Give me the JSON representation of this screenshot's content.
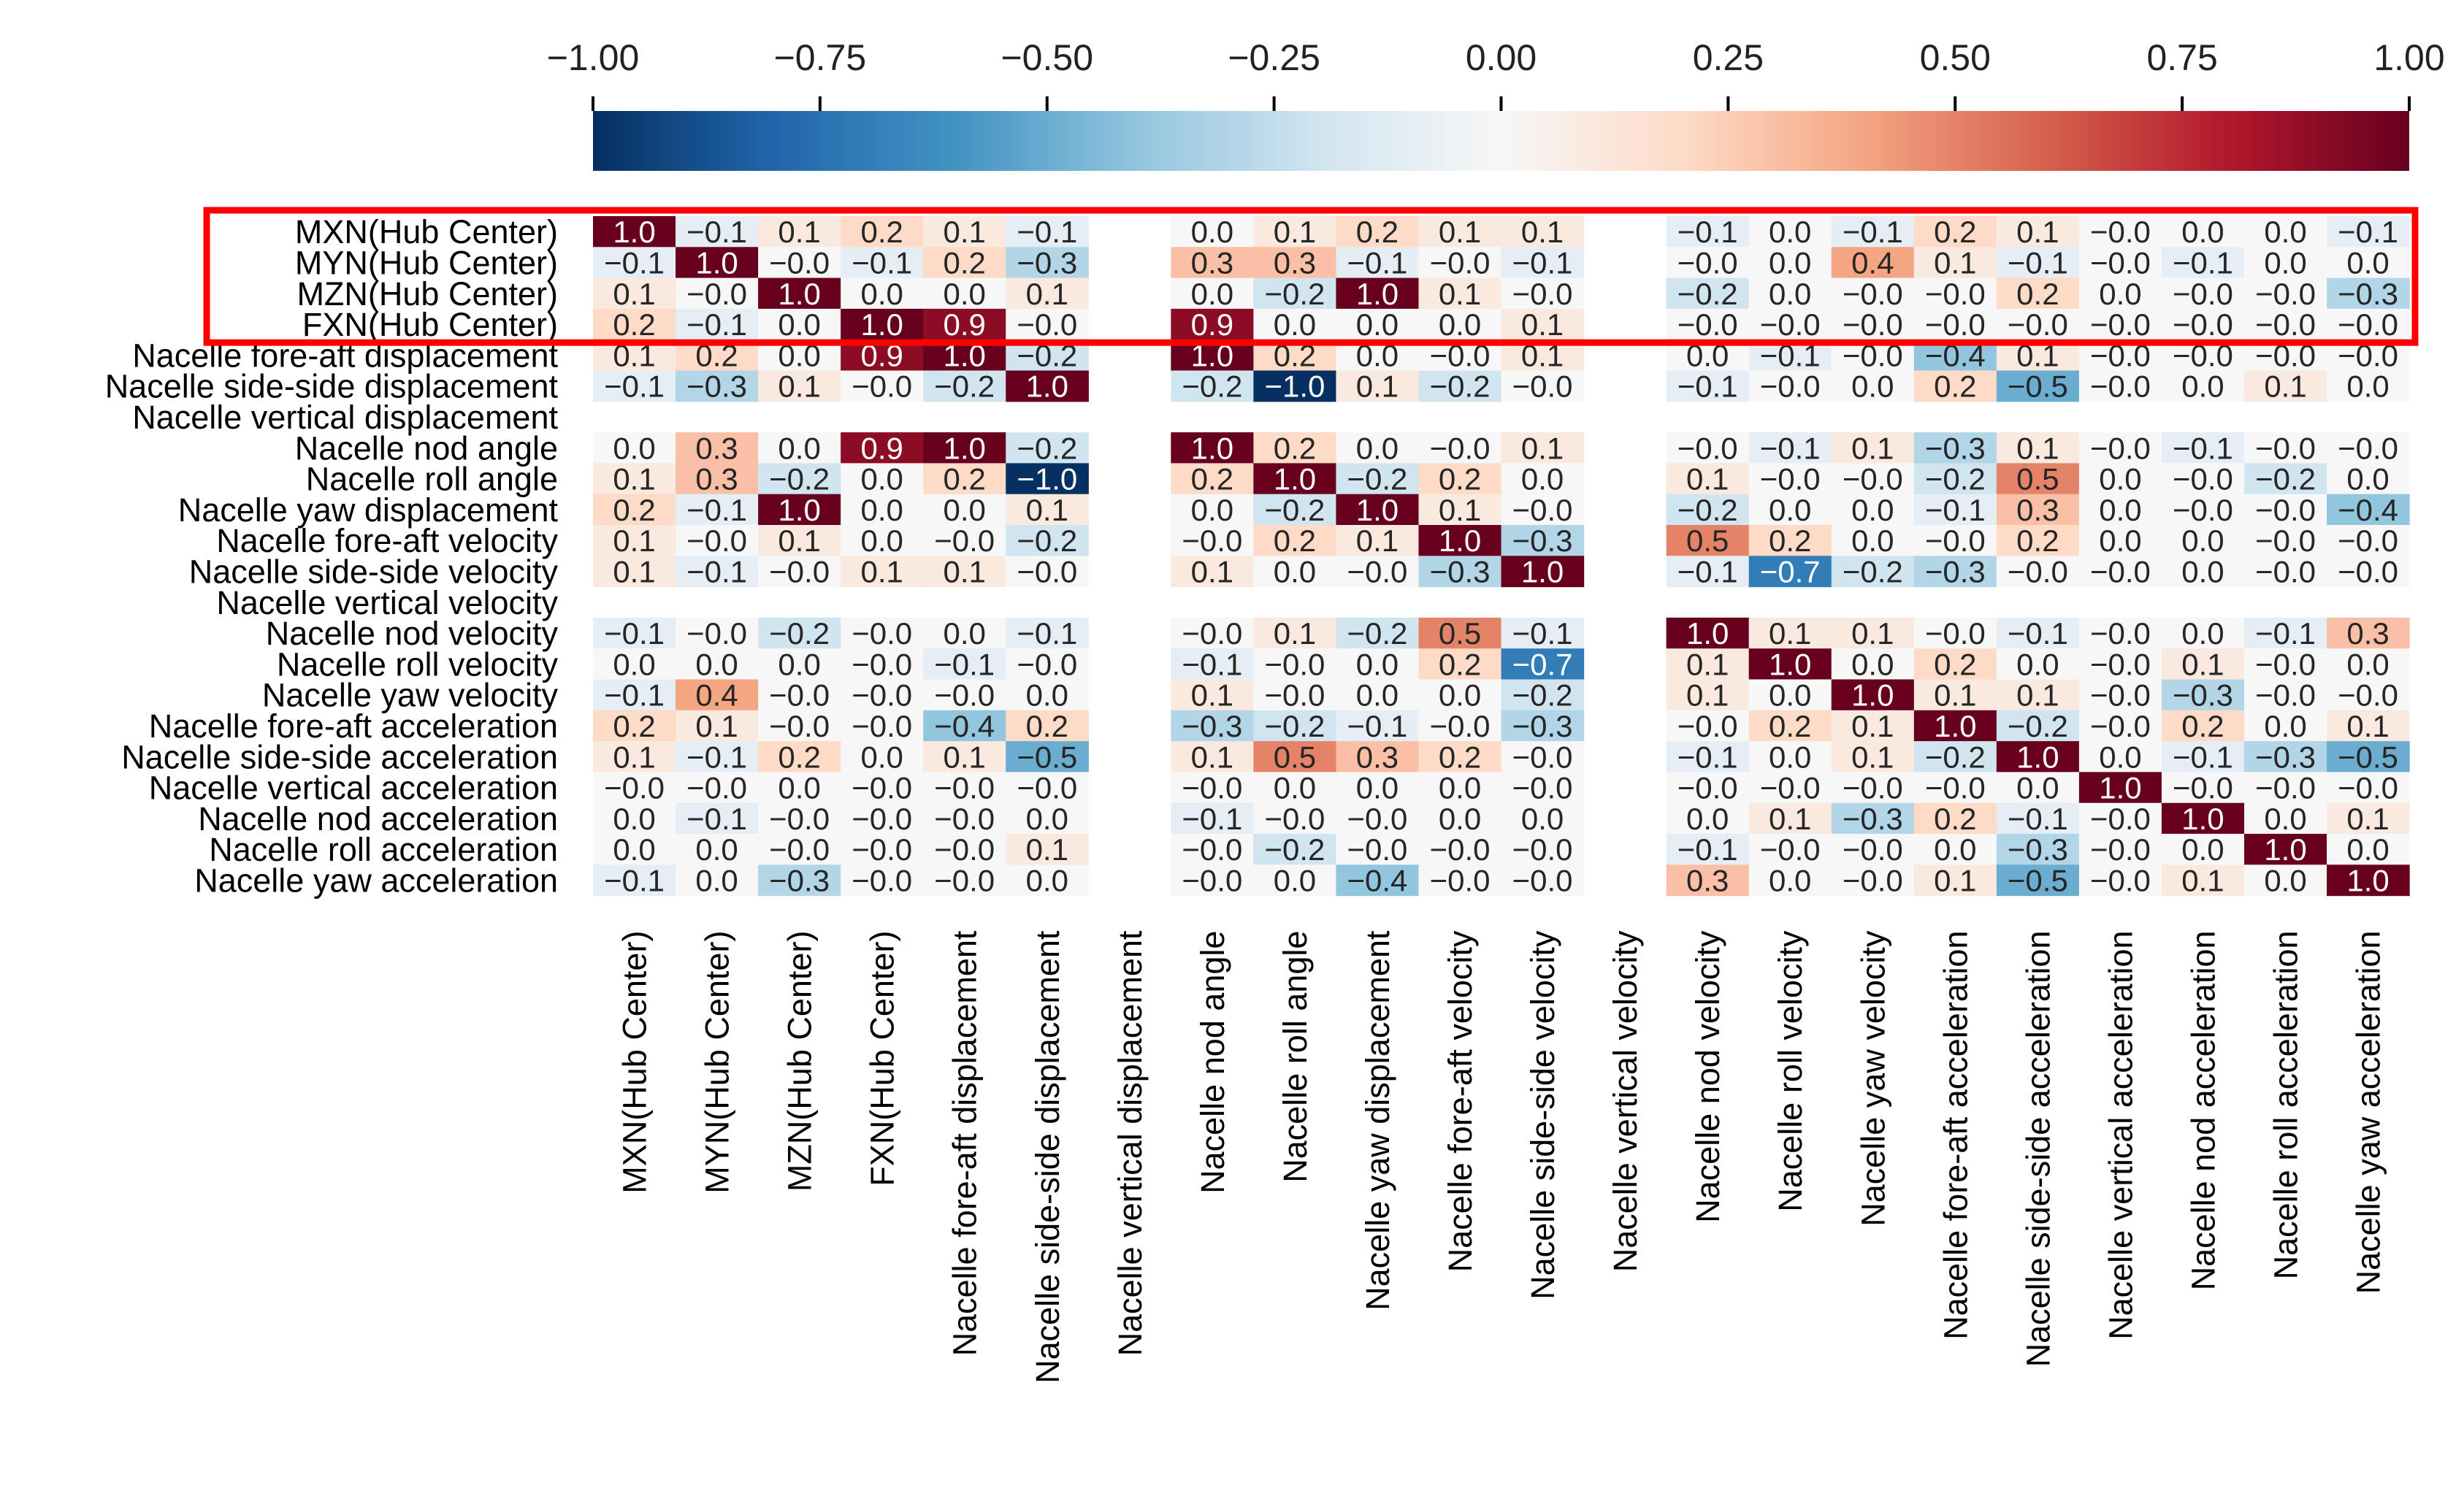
{
  "chart_data": {
    "type": "heatmap",
    "title": "",
    "labels": [
      "MXN(Hub Center)",
      "MYN(Hub Center)",
      "MZN(Hub Center)",
      "FXN(Hub Center)",
      "Nacelle fore-aft displacement",
      "Nacelle side-side displacement",
      "Nacelle vertical displacement",
      "Nacelle nod angle",
      "Nacelle roll angle",
      "Nacelle yaw displacement",
      "Nacelle fore-aft velocity",
      "Nacelle side-side velocity",
      "Nacelle vertical velocity",
      "Nacelle nod velocity",
      "Nacelle roll velocity",
      "Nacelle yaw velocity",
      "Nacelle fore-aft acceleration",
      "Nacelle side-side acceleration",
      "Nacelle vertical acceleration",
      "Nacelle nod acceleration",
      "Nacelle roll acceleration",
      "Nacelle yaw acceleration"
    ],
    "cells": [
      [
        "1.0",
        "−0.1",
        "0.1",
        "0.2",
        "0.1",
        "−0.1",
        null,
        "0.0",
        "0.1",
        "0.2",
        "0.1",
        "0.1",
        null,
        "−0.1",
        "0.0",
        "−0.1",
        "0.2",
        "0.1",
        "−0.0",
        "0.0",
        "0.0",
        "−0.1"
      ],
      [
        "−0.1",
        "1.0",
        "−0.0",
        "−0.1",
        "0.2",
        "−0.3",
        null,
        "0.3",
        "0.3",
        "−0.1",
        "−0.0",
        "−0.1",
        null,
        "−0.0",
        "0.0",
        "0.4",
        "0.1",
        "−0.1",
        "−0.0",
        "−0.1",
        "0.0",
        "0.0"
      ],
      [
        "0.1",
        "−0.0",
        "1.0",
        "0.0",
        "0.0",
        "0.1",
        null,
        "0.0",
        "−0.2",
        "1.0",
        "0.1",
        "−0.0",
        null,
        "−0.2",
        "0.0",
        "−0.0",
        "−0.0",
        "0.2",
        "0.0",
        "−0.0",
        "−0.0",
        "−0.3"
      ],
      [
        "0.2",
        "−0.1",
        "0.0",
        "1.0",
        "0.9",
        "−0.0",
        null,
        "0.9",
        "0.0",
        "0.0",
        "0.0",
        "0.1",
        null,
        "−0.0",
        "−0.0",
        "−0.0",
        "−0.0",
        "−0.0",
        "−0.0",
        "−0.0",
        "−0.0",
        "−0.0"
      ],
      [
        "0.1",
        "0.2",
        "0.0",
        "0.9",
        "1.0",
        "−0.2",
        null,
        "1.0",
        "0.2",
        "0.0",
        "−0.0",
        "0.1",
        null,
        "0.0",
        "−0.1",
        "−0.0",
        "−0.4",
        "0.1",
        "−0.0",
        "−0.0",
        "−0.0",
        "−0.0"
      ],
      [
        "−0.1",
        "−0.3",
        "0.1",
        "−0.0",
        "−0.2",
        "1.0",
        null,
        "−0.2",
        "−1.0",
        "0.1",
        "−0.2",
        "−0.0",
        null,
        "−0.1",
        "−0.0",
        "0.0",
        "0.2",
        "−0.5",
        "−0.0",
        "0.0",
        "0.1",
        "0.0"
      ],
      [
        null,
        null,
        null,
        null,
        null,
        null,
        null,
        null,
        null,
        null,
        null,
        null,
        null,
        null,
        null,
        null,
        null,
        null,
        null,
        null,
        null,
        null
      ],
      [
        "0.0",
        "0.3",
        "0.0",
        "0.9",
        "1.0",
        "−0.2",
        null,
        "1.0",
        "0.2",
        "0.0",
        "−0.0",
        "0.1",
        null,
        "−0.0",
        "−0.1",
        "0.1",
        "−0.3",
        "0.1",
        "−0.0",
        "−0.1",
        "−0.0",
        "−0.0"
      ],
      [
        "0.1",
        "0.3",
        "−0.2",
        "0.0",
        "0.2",
        "−1.0",
        null,
        "0.2",
        "1.0",
        "−0.2",
        "0.2",
        "0.0",
        null,
        "0.1",
        "−0.0",
        "−0.0",
        "−0.2",
        "0.5",
        "0.0",
        "−0.0",
        "−0.2",
        "0.0"
      ],
      [
        "0.2",
        "−0.1",
        "1.0",
        "0.0",
        "0.0",
        "0.1",
        null,
        "0.0",
        "−0.2",
        "1.0",
        "0.1",
        "−0.0",
        null,
        "−0.2",
        "0.0",
        "0.0",
        "−0.1",
        "0.3",
        "0.0",
        "−0.0",
        "−0.0",
        "−0.4"
      ],
      [
        "0.1",
        "−0.0",
        "0.1",
        "0.0",
        "−0.0",
        "−0.2",
        null,
        "−0.0",
        "0.2",
        "0.1",
        "1.0",
        "−0.3",
        null,
        "0.5",
        "0.2",
        "0.0",
        "−0.0",
        "0.2",
        "0.0",
        "0.0",
        "−0.0",
        "−0.0"
      ],
      [
        "0.1",
        "−0.1",
        "−0.0",
        "0.1",
        "0.1",
        "−0.0",
        null,
        "0.1",
        "0.0",
        "−0.0",
        "−0.3",
        "1.0",
        null,
        "−0.1",
        "−0.7",
        "−0.2",
        "−0.3",
        "−0.0",
        "−0.0",
        "0.0",
        "−0.0",
        "−0.0"
      ],
      [
        null,
        null,
        null,
        null,
        null,
        null,
        null,
        null,
        null,
        null,
        null,
        null,
        null,
        null,
        null,
        null,
        null,
        null,
        null,
        null,
        null,
        null
      ],
      [
        "−0.1",
        "−0.0",
        "−0.2",
        "−0.0",
        "0.0",
        "−0.1",
        null,
        "−0.0",
        "0.1",
        "−0.2",
        "0.5",
        "−0.1",
        null,
        "1.0",
        "0.1",
        "0.1",
        "−0.0",
        "−0.1",
        "−0.0",
        "0.0",
        "−0.1",
        "0.3"
      ],
      [
        "0.0",
        "0.0",
        "0.0",
        "−0.0",
        "−0.1",
        "−0.0",
        null,
        "−0.1",
        "−0.0",
        "0.0",
        "0.2",
        "−0.7",
        null,
        "0.1",
        "1.0",
        "0.0",
        "0.2",
        "0.0",
        "−0.0",
        "0.1",
        "−0.0",
        "0.0"
      ],
      [
        "−0.1",
        "0.4",
        "−0.0",
        "−0.0",
        "−0.0",
        "0.0",
        null,
        "0.1",
        "−0.0",
        "0.0",
        "0.0",
        "−0.2",
        null,
        "0.1",
        "0.0",
        "1.0",
        "0.1",
        "0.1",
        "−0.0",
        "−0.3",
        "−0.0",
        "−0.0"
      ],
      [
        "0.2",
        "0.1",
        "−0.0",
        "−0.0",
        "−0.4",
        "0.2",
        null,
        "−0.3",
        "−0.2",
        "−0.1",
        "−0.0",
        "−0.3",
        null,
        "−0.0",
        "0.2",
        "0.1",
        "1.0",
        "−0.2",
        "−0.0",
        "0.2",
        "0.0",
        "0.1"
      ],
      [
        "0.1",
        "−0.1",
        "0.2",
        "0.0",
        "0.1",
        "−0.5",
        null,
        "0.1",
        "0.5",
        "0.3",
        "0.2",
        "−0.0",
        null,
        "−0.1",
        "0.0",
        "0.1",
        "−0.2",
        "1.0",
        "0.0",
        "−0.1",
        "−0.3",
        "−0.5"
      ],
      [
        "−0.0",
        "−0.0",
        "0.0",
        "−0.0",
        "−0.0",
        "−0.0",
        null,
        "−0.0",
        "0.0",
        "0.0",
        "0.0",
        "−0.0",
        null,
        "−0.0",
        "−0.0",
        "−0.0",
        "−0.0",
        "0.0",
        "1.0",
        "−0.0",
        "−0.0",
        "−0.0"
      ],
      [
        "0.0",
        "−0.1",
        "−0.0",
        "−0.0",
        "−0.0",
        "0.0",
        null,
        "−0.1",
        "−0.0",
        "−0.0",
        "0.0",
        "0.0",
        null,
        "0.0",
        "0.1",
        "−0.3",
        "0.2",
        "−0.1",
        "−0.0",
        "1.0",
        "0.0",
        "0.1"
      ],
      [
        "0.0",
        "0.0",
        "−0.0",
        "−0.0",
        "−0.0",
        "0.1",
        null,
        "−0.0",
        "−0.2",
        "−0.0",
        "−0.0",
        "−0.0",
        null,
        "−0.1",
        "−0.0",
        "−0.0",
        "0.0",
        "−0.3",
        "−0.0",
        "0.0",
        "1.0",
        "0.0"
      ],
      [
        "−0.1",
        "0.0",
        "−0.3",
        "−0.0",
        "−0.0",
        "0.0",
        null,
        "−0.0",
        "0.0",
        "−0.4",
        "−0.0",
        "−0.0",
        null,
        "0.3",
        "0.0",
        "−0.0",
        "0.1",
        "−0.5",
        "−0.0",
        "0.1",
        "0.0",
        "1.0"
      ]
    ],
    "colorbar": {
      "range": [
        -1.0,
        1.0
      ],
      "ticks": [
        "−1.00",
        "−0.75",
        "−0.50",
        "−0.25",
        "0.00",
        "0.25",
        "0.50",
        "0.75",
        "1.00"
      ],
      "tick_values": [
        -1.0,
        -0.75,
        -0.5,
        -0.25,
        0.0,
        0.25,
        0.5,
        0.75,
        1.0
      ],
      "colormap": "RdBu_r",
      "stops": [
        "#053061",
        "#2166ac",
        "#4393c3",
        "#92c5de",
        "#d1e5f0",
        "#f7f7f7",
        "#fddbc7",
        "#f4a582",
        "#d6604d",
        "#b2182b",
        "#67001f"
      ]
    },
    "highlight": {
      "description_rows": [
        "MXN(Hub Center)",
        "MYN(Hub Center)",
        "MZN(Hub Center)",
        "FXN(Hub Center)"
      ],
      "row_start": 0,
      "row_end": 3,
      "color": "#ff0000"
    }
  }
}
